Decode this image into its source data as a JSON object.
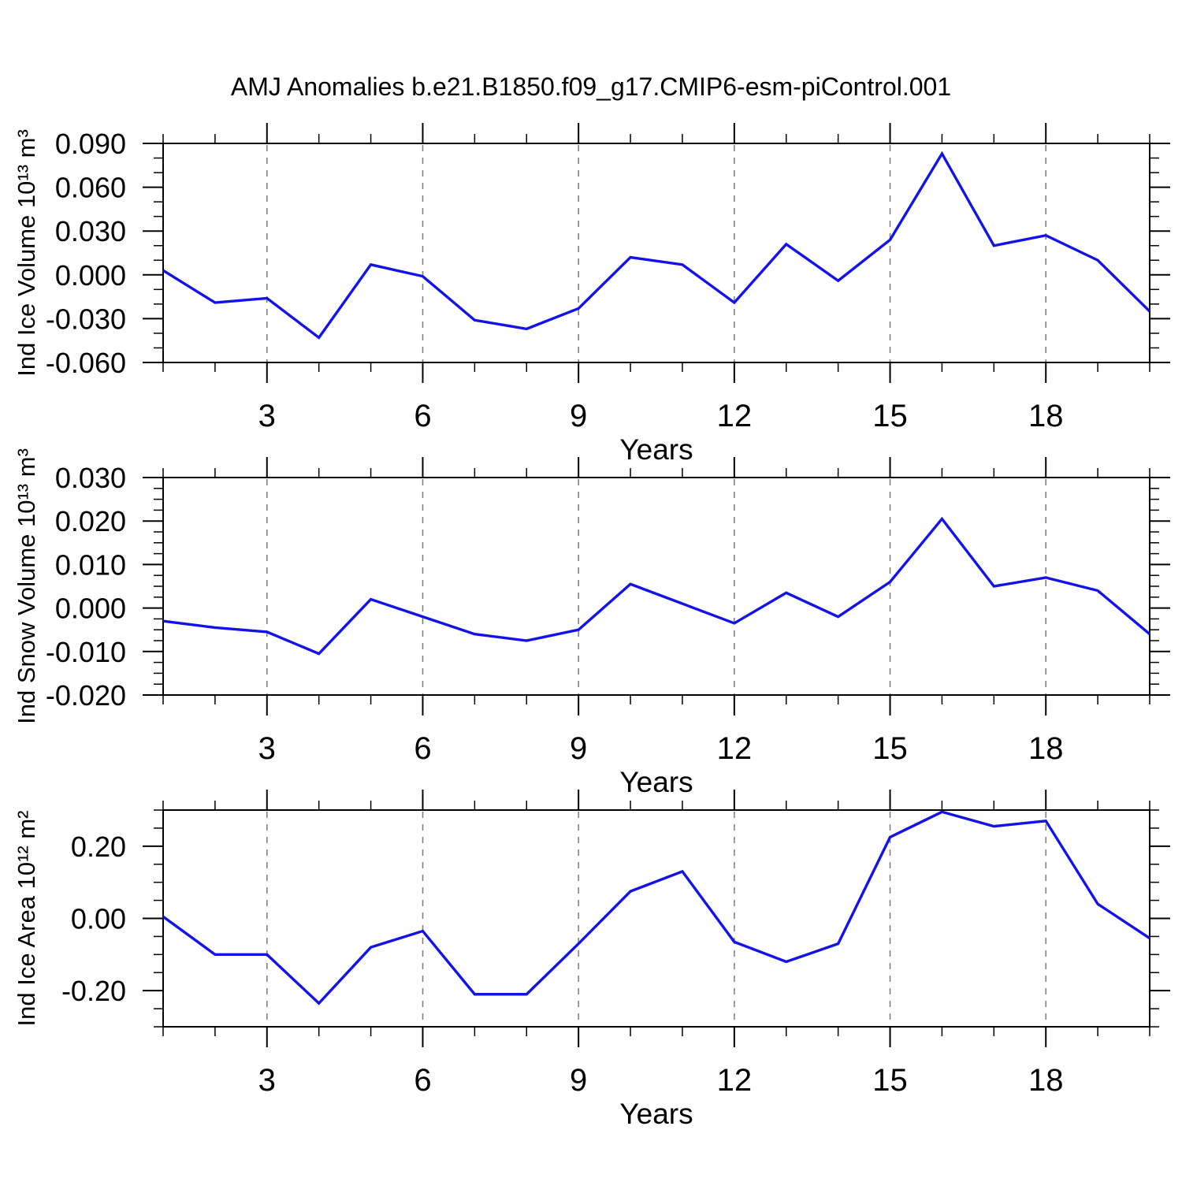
{
  "title": "AMJ Anomalies b.e21.B1850.f09_g17.CMIP6-esm-piControl.001",
  "colors": {
    "line": "#1212EC",
    "grid": "#7A7A7A",
    "axis": "#000000",
    "background": "#FFFFFF",
    "text": "#000000"
  },
  "chart_data": [
    {
      "type": "line",
      "series_name": "Ind Ice Volume anomaly",
      "ylabel": "Ind Ice Volume 10¹³ m³",
      "xlabel": "Years",
      "x": [
        1,
        2,
        3,
        4,
        5,
        6,
        7,
        8,
        9,
        10,
        11,
        12,
        13,
        14,
        15,
        16,
        17,
        18,
        19,
        20
      ],
      "values": [
        0.003,
        -0.019,
        -0.016,
        -0.043,
        0.007,
        -0.001,
        -0.031,
        -0.037,
        -0.023,
        0.012,
        0.007,
        -0.019,
        0.021,
        -0.004,
        0.024,
        0.083,
        0.02,
        0.027,
        0.01,
        -0.025
      ],
      "xlim": [
        1,
        20
      ],
      "ylim": [
        -0.06,
        0.09
      ],
      "ytick_values": [
        0.09,
        0.06,
        0.03,
        0.0,
        -0.03,
        -0.06
      ],
      "ytick_labels": [
        "0.090",
        "0.060",
        "0.030",
        "0.000",
        "-0.030",
        "-0.060"
      ],
      "yminor_step": 0.01,
      "xtick_values": [
        3,
        6,
        9,
        12,
        15,
        18
      ],
      "xtick_labels": [
        "3",
        "6",
        "9",
        "12",
        "15",
        "18"
      ],
      "xminor_step": 1,
      "grid_x": [
        3,
        6,
        9,
        12,
        15,
        18
      ],
      "grid": "vertical-dashed",
      "legend": "none"
    },
    {
      "type": "line",
      "series_name": "Ind Snow Volume anomaly",
      "ylabel": "Ind Snow Volume 10¹³ m³",
      "xlabel": "Years",
      "x": [
        1,
        2,
        3,
        4,
        5,
        6,
        7,
        8,
        9,
        10,
        11,
        12,
        13,
        14,
        15,
        16,
        17,
        18,
        19,
        20
      ],
      "values": [
        -0.003,
        -0.0045,
        -0.0055,
        -0.0105,
        0.002,
        -0.002,
        -0.006,
        -0.0075,
        -0.005,
        0.0055,
        0.001,
        -0.0035,
        0.0035,
        -0.002,
        0.006,
        0.0205,
        0.005,
        0.007,
        0.004,
        -0.006
      ],
      "xlim": [
        1,
        20
      ],
      "ylim": [
        -0.02,
        0.03
      ],
      "ytick_values": [
        0.03,
        0.02,
        0.01,
        0.0,
        -0.01,
        -0.02
      ],
      "ytick_labels": [
        "0.030",
        "0.020",
        "0.010",
        "0.000",
        "-0.010",
        "-0.020"
      ],
      "yminor_step": 0.0025,
      "xtick_values": [
        3,
        6,
        9,
        12,
        15,
        18
      ],
      "xtick_labels": [
        "3",
        "6",
        "9",
        "12",
        "15",
        "18"
      ],
      "xminor_step": 1,
      "grid_x": [
        3,
        6,
        9,
        12,
        15,
        18
      ],
      "grid": "vertical-dashed",
      "legend": "none"
    },
    {
      "type": "line",
      "series_name": "Ind Ice Area anomaly",
      "ylabel": "Ind Ice Area 10¹² m²",
      "xlabel": "Years",
      "x": [
        1,
        2,
        3,
        4,
        5,
        6,
        7,
        8,
        9,
        10,
        11,
        12,
        13,
        14,
        15,
        16,
        17,
        18,
        19,
        20
      ],
      "values": [
        0.005,
        -0.1,
        -0.1,
        -0.235,
        -0.08,
        -0.035,
        -0.21,
        -0.21,
        -0.07,
        0.075,
        0.13,
        -0.065,
        -0.12,
        -0.07,
        0.225,
        0.295,
        0.255,
        0.27,
        0.04,
        -0.055
      ],
      "xlim": [
        1,
        20
      ],
      "ylim": [
        -0.3,
        0.3
      ],
      "ytick_values": [
        0.2,
        0.0,
        -0.2
      ],
      "ytick_labels": [
        "0.20",
        "0.00",
        "-0.20"
      ],
      "yminor_step": 0.05,
      "xtick_values": [
        3,
        6,
        9,
        12,
        15,
        18
      ],
      "xtick_labels": [
        "3",
        "6",
        "9",
        "12",
        "15",
        "18"
      ],
      "xminor_step": 1,
      "grid_x": [
        3,
        6,
        9,
        12,
        15,
        18
      ],
      "grid": "vertical-dashed",
      "legend": "none"
    }
  ]
}
